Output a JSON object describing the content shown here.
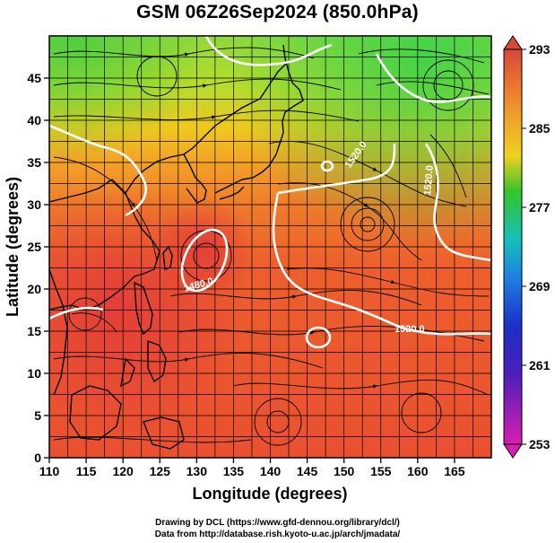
{
  "title": "GSM 06Z26Sep2024 (850.0hPa)",
  "xlabel": "Longitude (degrees)",
  "ylabel": "Latitude  (degrees)",
  "x_ticks": [
    "110",
    "115",
    "120",
    "125",
    "130",
    "135",
    "140",
    "145",
    "150",
    "155",
    "160",
    "165"
  ],
  "y_ticks": [
    "0",
    "5",
    "10",
    "15",
    "20",
    "25",
    "30",
    "35",
    "40",
    "45"
  ],
  "colorbar": {
    "ticks": [
      "293",
      "285",
      "277",
      "269",
      "261",
      "253"
    ],
    "colors": [
      "#d5483b",
      "#ee8a2a",
      "#f0c21a",
      "#35c42a",
      "#16c0c0",
      "#1e7fe0",
      "#1c2fc8",
      "#7a1fb4",
      "#d51fb0"
    ]
  },
  "contour_labels": [
    "1520.0",
    "1520.0",
    "1480.0",
    "1520.0"
  ],
  "credits": {
    "line1": "Drawing by DCL (https://www.gfd-dennou.org/library/dcl/)",
    "line2": "Data from http://database.rish.kyoto-u.ac.jp/arch/jmadata/"
  }
}
